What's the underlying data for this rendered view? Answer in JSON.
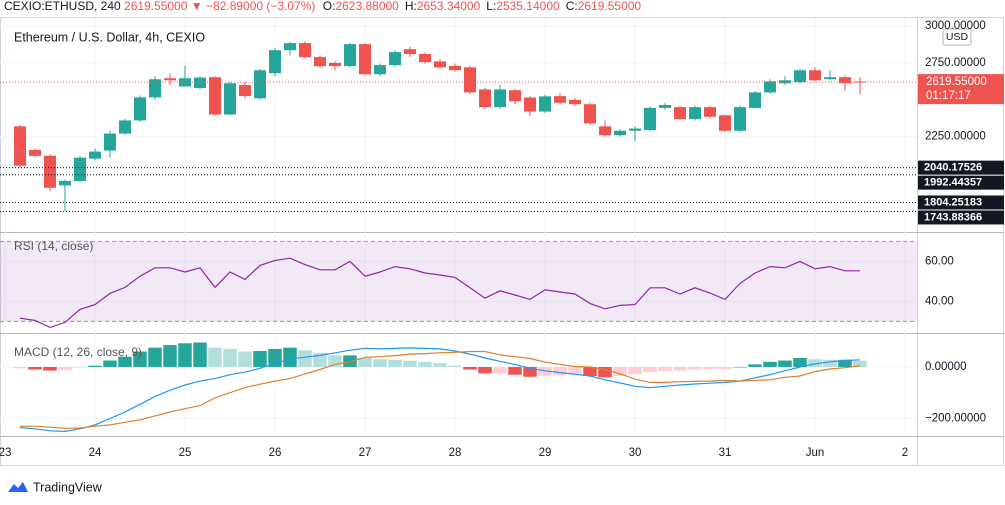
{
  "header": {
    "symbol": "CEXIO:ETHUSD, 240",
    "last": "2619.55000",
    "change": "▼ −82.89000 (−3.07%)",
    "ohlc": [
      {
        "label": "O:",
        "value": "2623.88000"
      },
      {
        "label": "H:",
        "value": "2653.34000"
      },
      {
        "label": "L:",
        "value": "2535.14000"
      },
      {
        "label": "C:",
        "value": "2619.55000"
      }
    ]
  },
  "branding": "TradingView",
  "chart_data": [
    {
      "type": "candlestick",
      "title": "Ethereum / U.S. Dollar, 4h, CEXIO",
      "currency": "USD",
      "up_color": "#26a69a",
      "down_color": "#ef5350",
      "open": [
        2320,
        2160,
        2121,
        1920,
        1950,
        2101,
        2156,
        2271,
        2360,
        2516,
        2646,
        2590,
        2580,
        2653,
        2400,
        2600,
        2510,
        2680,
        2836,
        2884,
        2789,
        2750,
        2728,
        2877,
        2673,
        2735,
        2843,
        2810,
        2760,
        2730,
        2720,
        2570,
        2450,
        2565,
        2515,
        2420,
        2525,
        2500,
        2470,
        2320,
        2260,
        2290,
        2295,
        2445,
        2450,
        2370,
        2450,
        2395,
        2290,
        2445,
        2550,
        2612,
        2620,
        2700,
        2640,
        2653,
        2623.88
      ],
      "high": [
        2330,
        2170,
        2130,
        1960,
        2120,
        2170,
        2290,
        2370,
        2530,
        2660,
        2680,
        2730,
        2660,
        2660,
        2620,
        2620,
        2710,
        2850,
        2890,
        2895,
        2800,
        2760,
        2885,
        2885,
        2745,
        2835,
        2860,
        2820,
        2775,
        2745,
        2730,
        2580,
        2600,
        2575,
        2525,
        2535,
        2545,
        2510,
        2480,
        2360,
        2300,
        2320,
        2455,
        2480,
        2460,
        2460,
        2460,
        2400,
        2460,
        2560,
        2640,
        2660,
        2710,
        2720,
        2700,
        2665,
        2653.34
      ],
      "low": [
        2040,
        2110,
        1880,
        1744,
        1940,
        2090,
        2110,
        2260,
        2350,
        2500,
        2600,
        2590,
        2570,
        2395,
        2395,
        2510,
        2500,
        2660,
        2800,
        2780,
        2715,
        2700,
        2720,
        2665,
        2660,
        2725,
        2790,
        2745,
        2710,
        2690,
        2540,
        2440,
        2440,
        2470,
        2390,
        2410,
        2470,
        2460,
        2330,
        2250,
        2250,
        2220,
        2285,
        2430,
        2360,
        2360,
        2375,
        2280,
        2280,
        2440,
        2540,
        2600,
        2610,
        2625,
        2630,
        2560,
        2535.14
      ],
      "close": [
        2053,
        2120,
        1904,
        1950,
        2108,
        2149,
        2271,
        2360,
        2516,
        2639,
        2632,
        2646,
        2650,
        2400,
        2612,
        2525,
        2700,
        2836,
        2884,
        2789,
        2728,
        2728,
        2877,
        2673,
        2735,
        2823,
        2810,
        2755,
        2720,
        2700,
        2550,
        2450,
        2570,
        2490,
        2420,
        2523,
        2480,
        2470,
        2340,
        2260,
        2290,
        2305,
        2445,
        2465,
        2370,
        2450,
        2385,
        2290,
        2450,
        2550,
        2625,
        2632,
        2700,
        2632,
        2653,
        2612,
        2619.55
      ],
      "ylim": [
        1611,
        3054
      ],
      "yticks": [
        {
          "value": 2250,
          "label": "2250.00000"
        },
        {
          "value": 2750,
          "label": "2750.00000"
        },
        {
          "value": 3000,
          "label": "3000.00000"
        }
      ],
      "levels": [
        2040.17526,
        1992.44357,
        1804.25183,
        1743.88366
      ],
      "last_price": {
        "value": 2619.55,
        "label": "2619.55000"
      },
      "countdown": "01:17:17"
    },
    {
      "type": "line",
      "title": "RSI (14, close)",
      "color": "#8e24aa",
      "band": [
        30,
        70
      ],
      "band_color": "#8e24aa",
      "values": [
        31.6,
        30.5,
        27,
        29.5,
        36,
        38.4,
        44,
        47,
        52.6,
        56.8,
        56.8,
        54.7,
        56.8,
        47,
        54.7,
        51,
        58,
        60.5,
        61.6,
        58.4,
        55.8,
        55.8,
        60,
        52.6,
        54.7,
        57.4,
        56.3,
        54.2,
        53.2,
        52,
        46.8,
        41.6,
        45.3,
        43.2,
        41,
        45.8,
        44.7,
        43.7,
        39,
        36.3,
        38,
        38.4,
        46.8,
        46.8,
        43.7,
        46.8,
        44.2,
        41,
        49,
        54.2,
        57.4,
        56.8,
        60,
        56.3,
        57.4,
        55.3,
        55.3
      ],
      "ylim": [
        24.2,
        74.2
      ],
      "yticks": [
        {
          "value": 40,
          "label": "40.00"
        },
        {
          "value": 60,
          "label": "60.00"
        }
      ]
    },
    {
      "type": "macd",
      "title": "MACD (12, 26, close, 9)",
      "histogram": [
        -5,
        -10,
        -14,
        -12,
        -3,
        5,
        25,
        40,
        60,
        75,
        85,
        92,
        95,
        75,
        70,
        60,
        62,
        70,
        75,
        65,
        55,
        45,
        45,
        35,
        30,
        28,
        24,
        20,
        15,
        5,
        -10,
        -25,
        -25,
        -30,
        -38,
        -34,
        -32,
        -30,
        -35,
        -40,
        -35,
        -28,
        -20,
        -15,
        -13,
        -10,
        -8,
        -8,
        0,
        10,
        20,
        25,
        35,
        30,
        28,
        28,
        24
      ],
      "macd": [
        -235,
        -240,
        -248,
        -250,
        -240,
        -225,
        -200,
        -175,
        -145,
        -115,
        -90,
        -70,
        -55,
        -45,
        -30,
        -20,
        -5,
        15,
        30,
        38,
        45,
        55,
        65,
        72,
        70,
        72,
        74,
        72,
        70,
        62,
        50,
        35,
        22,
        10,
        -5,
        -15,
        -22,
        -28,
        -35,
        -50,
        -62,
        -75,
        -80,
        -75,
        -70,
        -66,
        -63,
        -60,
        -55,
        -42,
        -30,
        -15,
        0,
        12,
        20,
        25,
        28
      ],
      "signal": [
        -230,
        -230,
        -234,
        -238,
        -237,
        -230,
        -225,
        -215,
        -205,
        -190,
        -175,
        -162,
        -150,
        -120,
        -100,
        -80,
        -67,
        -55,
        -45,
        -27,
        -10,
        10,
        20,
        37,
        40,
        44,
        50,
        52,
        55,
        57,
        60,
        60,
        47,
        40,
        33,
        19,
        10,
        2,
        0,
        -10,
        -27,
        -47,
        -60,
        -60,
        -57,
        -56,
        -55,
        -52,
        -55,
        -52,
        -50,
        -40,
        -35,
        -18,
        -8,
        -3,
        4
      ],
      "macd_color": "#2196f3",
      "signal_color": "#e0802c",
      "hist_colors": {
        "up_strong": "#26a69a",
        "up_weak": "#b2dfdb",
        "down_strong": "#ef5350",
        "down_weak": "#ffcdd2"
      },
      "ylim": [
        -268,
        128
      ],
      "yticks": [
        {
          "value": -200,
          "label": "−200.00000"
        },
        {
          "value": 0,
          "label": "0.00000"
        }
      ],
      "xlim": [
        -1.333,
        59.8
      ],
      "xticks": [
        {
          "value": -1,
          "label": "23"
        },
        {
          "value": 5,
          "label": "24"
        },
        {
          "value": 11,
          "label": "25"
        },
        {
          "value": 17,
          "label": "26"
        },
        {
          "value": 23,
          "label": "27"
        },
        {
          "value": 29,
          "label": "28"
        },
        {
          "value": 35,
          "label": "29"
        },
        {
          "value": 41,
          "label": "30"
        },
        {
          "value": 47,
          "label": "31"
        },
        {
          "value": 53,
          "label": "Jun"
        },
        {
          "value": 59,
          "label": "2"
        }
      ]
    }
  ]
}
